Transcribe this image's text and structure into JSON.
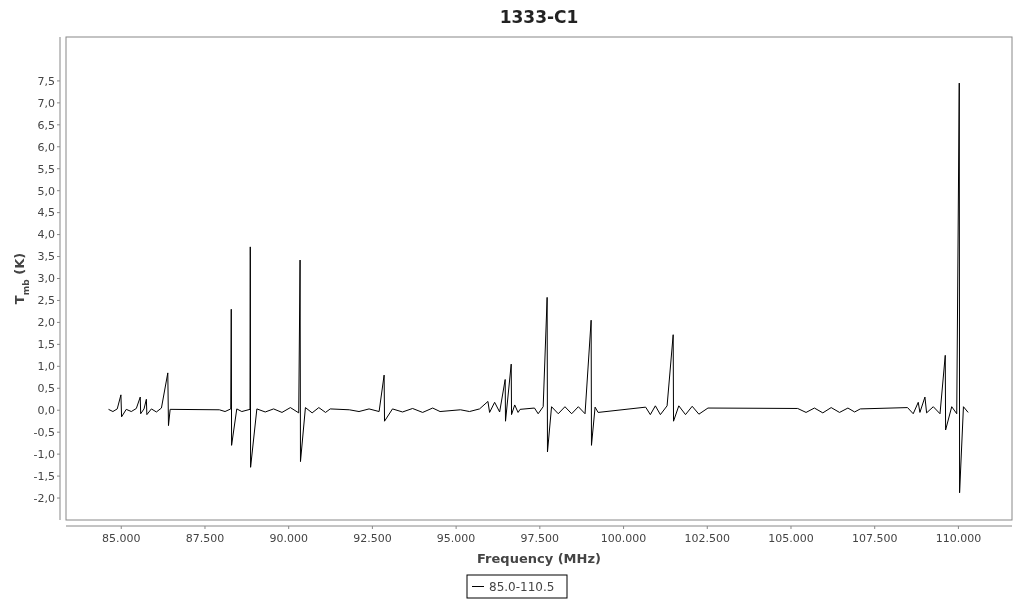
{
  "chart_data": {
    "type": "line",
    "title": "1333-C1",
    "xlabel": "Frequency (MHz)",
    "ylabel": "T$_{mb}$ (K)",
    "xlim": [
      83350,
      111600
    ],
    "ylim": [
      -2.5,
      8.5
    ],
    "xticks": [
      {
        "value": 85000,
        "label": "85.000"
      },
      {
        "value": 87500,
        "label": "87.500"
      },
      {
        "value": 90000,
        "label": "90.000"
      },
      {
        "value": 92500,
        "label": "92.500"
      },
      {
        "value": 95000,
        "label": "95.000"
      },
      {
        "value": 97500,
        "label": "97.500"
      },
      {
        "value": 100000,
        "label": "100.000"
      },
      {
        "value": 102500,
        "label": "102.500"
      },
      {
        "value": 105000,
        "label": "105.000"
      },
      {
        "value": 107500,
        "label": "107.500"
      },
      {
        "value": 110000,
        "label": "110.000"
      }
    ],
    "yticks": [
      {
        "value": -2,
        "label": "-2,0"
      },
      {
        "value": -1.5,
        "label": "-1,5"
      },
      {
        "value": -1,
        "label": "-1,0"
      },
      {
        "value": -0.5,
        "label": "-0,5"
      },
      {
        "value": 0,
        "label": "0,0"
      },
      {
        "value": 0.5,
        "label": "0,5"
      },
      {
        "value": 1,
        "label": "1,0"
      },
      {
        "value": 1.5,
        "label": "1,5"
      },
      {
        "value": 2,
        "label": "2,0"
      },
      {
        "value": 2.5,
        "label": "2,5"
      },
      {
        "value": 3,
        "label": "3,0"
      },
      {
        "value": 3.5,
        "label": "3,5"
      },
      {
        "value": 4,
        "label": "4,0"
      },
      {
        "value": 4.5,
        "label": "4,5"
      },
      {
        "value": 5,
        "label": "5,0"
      },
      {
        "value": 5.5,
        "label": "5,5"
      },
      {
        "value": 6,
        "label": "6,0"
      },
      {
        "value": 6.5,
        "label": "6,5"
      },
      {
        "value": 7,
        "label": "7,0"
      },
      {
        "value": 7.5,
        "label": "7,5"
      }
    ],
    "grid": false,
    "legend": "bottom",
    "marker": "none",
    "line_style": "solid",
    "series": [
      {
        "name": "85.0-110.5",
        "color": "#000000",
        "x": [
          84620,
          84750,
          84880,
          84990,
          85010,
          85150,
          85300,
          85450,
          85567,
          85580,
          85680,
          85750,
          85765,
          85900,
          86050,
          86200,
          86390,
          86410,
          86460,
          87930,
          88100,
          88270,
          88285,
          88295,
          88450,
          88600,
          88845,
          88853,
          88862,
          89050,
          89300,
          89550,
          89800,
          90050,
          90300,
          90340,
          90352,
          90500,
          90700,
          90900,
          91100,
          91240,
          91810,
          92100,
          92400,
          92700,
          92850,
          92862,
          93100,
          93400,
          93700,
          94000,
          94300,
          94520,
          95130,
          95400,
          95700,
          95950,
          96000,
          96150,
          96300,
          96465,
          96475,
          96645,
          96655,
          96750,
          96850,
          96910,
          97340,
          97450,
          97600,
          97718,
          97728,
          97850,
          98050,
          98250,
          98450,
          98650,
          98850,
          99032,
          99042,
          99150,
          99240,
          100660,
          100800,
          100950,
          101100,
          101300,
          101482,
          101492,
          101650,
          101850,
          102050,
          102250,
          102520,
          105200,
          105450,
          105700,
          105950,
          106200,
          106450,
          106700,
          106900,
          107070,
          108480,
          108650,
          108800,
          108850,
          109000,
          109050,
          109250,
          109450,
          109607,
          109617,
          109800,
          109950,
          110025,
          110035,
          110150,
          110290
        ],
        "values": [
          0.02,
          -0.03,
          0.03,
          0.35,
          -0.15,
          0.02,
          -0.03,
          0.04,
          0.3,
          -0.08,
          0.03,
          0.25,
          -0.1,
          0.03,
          -0.04,
          0.05,
          0.85,
          -0.35,
          0.02,
          0.01,
          -0.03,
          0.03,
          2.3,
          -0.8,
          0.03,
          -0.03,
          0.02,
          3.72,
          -1.3,
          0.03,
          -0.04,
          0.03,
          -0.05,
          0.06,
          -0.06,
          3.42,
          -1.17,
          0.06,
          -0.06,
          0.06,
          -0.05,
          0.03,
          0.01,
          -0.03,
          0.03,
          -0.03,
          0.8,
          -0.25,
          0.03,
          -0.04,
          0.04,
          -0.05,
          0.05,
          -0.03,
          0.01,
          -0.03,
          0.03,
          0.2,
          -0.05,
          0.18,
          -0.04,
          0.7,
          -0.25,
          1.05,
          -0.1,
          0.12,
          -0.05,
          0.02,
          0.05,
          -0.08,
          0.08,
          2.57,
          -0.95,
          0.08,
          -0.08,
          0.08,
          -0.08,
          0.08,
          -0.08,
          2.05,
          -0.8,
          0.07,
          -0.05,
          0.07,
          -0.1,
          0.1,
          -0.1,
          0.1,
          1.72,
          -0.25,
          0.1,
          -0.1,
          0.09,
          -0.09,
          0.05,
          0.04,
          -0.05,
          0.05,
          -0.06,
          0.06,
          -0.05,
          0.05,
          -0.04,
          0.03,
          0.06,
          -0.08,
          0.18,
          -0.05,
          0.3,
          -0.06,
          0.08,
          -0.08,
          1.25,
          -0.45,
          0.08,
          -0.08,
          7.45,
          -1.88,
          0.08,
          -0.05
        ]
      }
    ]
  }
}
